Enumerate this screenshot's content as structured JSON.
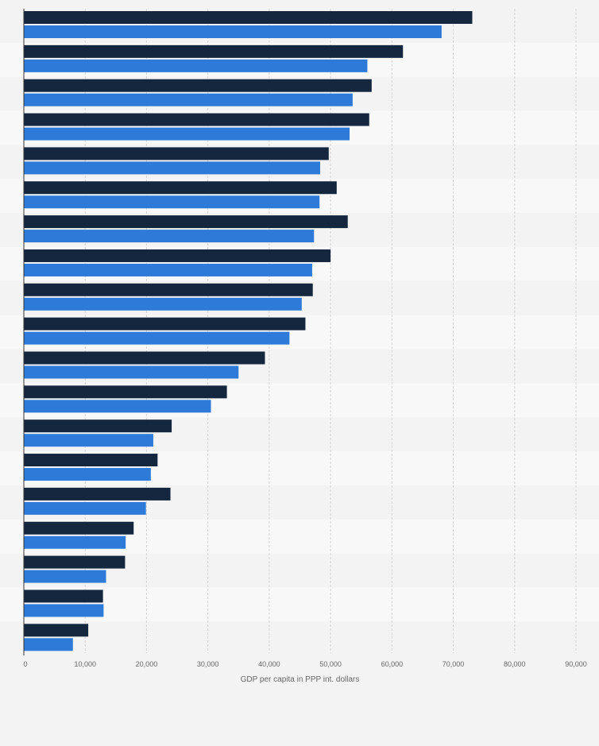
{
  "chart_data": {
    "type": "bar",
    "orientation": "horizontal",
    "title": "",
    "xlabel": "GDP per capita in PPP int. dollars",
    "ylabel": "",
    "xlim": [
      0,
      90000
    ],
    "x_ticks": [
      0,
      10000,
      20000,
      30000,
      40000,
      50000,
      60000,
      70000,
      80000,
      90000
    ],
    "x_tick_labels": [
      "0",
      "10,000",
      "20,000",
      "30,000",
      "40,000",
      "50,000",
      "60,000",
      "70,000",
      "80,000",
      "90,000"
    ],
    "grid": true,
    "legend": "none",
    "series": [
      {
        "color": "#14273f",
        "values": [
          73100,
          61800,
          56700,
          56300,
          49700,
          51000,
          52800,
          50000,
          47100,
          45900,
          39300,
          33100,
          24100,
          21800,
          23900,
          17900,
          16500,
          12900,
          10500
        ]
      },
      {
        "color": "#2e7ad9",
        "values": [
          68100,
          56000,
          53600,
          53100,
          48300,
          48200,
          47300,
          47000,
          45300,
          43300,
          35000,
          30500,
          21100,
          20700,
          19900,
          16600,
          13400,
          13000,
          8000
        ]
      }
    ]
  }
}
